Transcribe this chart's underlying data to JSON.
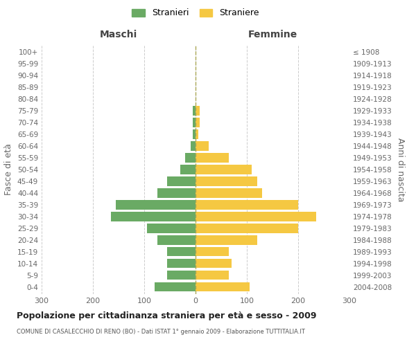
{
  "age_groups_bottom_to_top": [
    "0-4",
    "5-9",
    "10-14",
    "15-19",
    "20-24",
    "25-29",
    "30-34",
    "35-39",
    "40-44",
    "45-49",
    "50-54",
    "55-59",
    "60-64",
    "65-69",
    "70-74",
    "75-79",
    "80-84",
    "85-89",
    "90-94",
    "95-99",
    "100+"
  ],
  "birth_years_bottom_to_top": [
    "2004-2008",
    "1999-2003",
    "1994-1998",
    "1989-1993",
    "1984-1988",
    "1979-1983",
    "1974-1978",
    "1969-1973",
    "1964-1968",
    "1959-1963",
    "1954-1958",
    "1949-1953",
    "1944-1948",
    "1939-1943",
    "1934-1938",
    "1929-1933",
    "1924-1928",
    "1919-1923",
    "1914-1918",
    "1909-1913",
    "≤ 1908"
  ],
  "maschi": [
    80,
    55,
    55,
    55,
    75,
    95,
    165,
    155,
    75,
    55,
    30,
    20,
    10,
    5,
    5,
    5,
    0,
    0,
    0,
    0,
    0
  ],
  "femmine": [
    105,
    65,
    70,
    65,
    120,
    200,
    235,
    200,
    130,
    120,
    110,
    65,
    25,
    5,
    8,
    8,
    0,
    0,
    0,
    0,
    0
  ],
  "color_maschi": "#6aaa64",
  "color_femmine": "#f5c842",
  "title": "Popolazione per cittadinanza straniera per età e sesso - 2009",
  "subtitle": "COMUNE DI CASALECCHIO DI RENO (BO) - Dati ISTAT 1° gennaio 2009 - Elaborazione TUTTITALIA.IT",
  "xlabel_left": "Maschi",
  "xlabel_right": "Femmine",
  "ylabel_left": "Fasce di età",
  "ylabel_right": "Anni di nascita",
  "legend_stranieri": "Stranieri",
  "legend_straniere": "Straniere",
  "xlim": 300,
  "background_color": "#ffffff",
  "grid_color": "#cccccc"
}
